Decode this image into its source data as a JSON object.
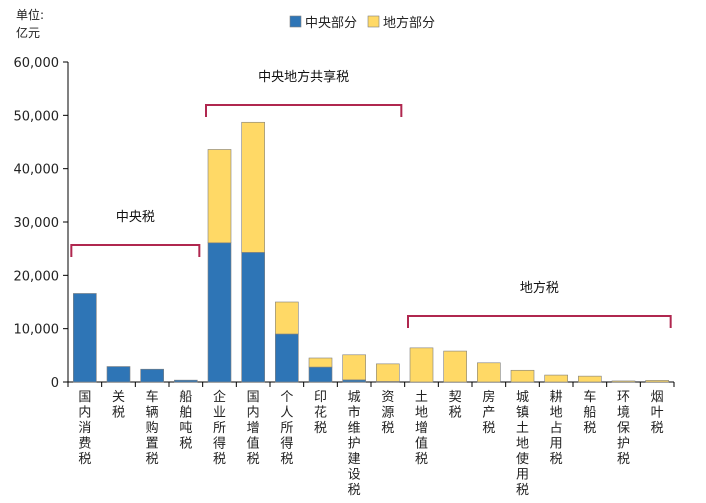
{
  "chart_data": {
    "type": "bar",
    "stacked": true,
    "unit_label": [
      "单位:",
      "亿元"
    ],
    "categories": [
      "国内消费税",
      "关税",
      "车辆购置税",
      "船舶吨税",
      "企业所得税",
      "国内增值税",
      "个人所得税",
      "印花税",
      "城市维护建设税",
      "资源税",
      "土地增值税",
      "契税",
      "房产税",
      "城镇土地使用税",
      "耕地占用税",
      "车船税",
      "环境保护税",
      "烟叶税"
    ],
    "series": [
      {
        "name": "中央部分",
        "color": "#2e75b6",
        "values": [
          16600,
          2900,
          2400,
          350,
          26100,
          24300,
          9000,
          2800,
          400,
          100,
          0,
          0,
          0,
          0,
          0,
          0,
          0,
          0
        ]
      },
      {
        "name": "地方部分",
        "color": "#ffd966",
        "values": [
          0,
          0,
          0,
          0,
          17500,
          24400,
          6000,
          1700,
          4700,
          3300,
          6400,
          5800,
          3600,
          2200,
          1300,
          1100,
          200,
          300
        ]
      }
    ],
    "ylim": [
      0,
      60000
    ],
    "yticks": [
      "0",
      "10,000",
      "20,000",
      "30,000",
      "40,000",
      "50,000",
      "60,000"
    ],
    "legend_position": "top",
    "group_brackets": [
      {
        "label": "中央税",
        "from": "国内消费税",
        "to": "船舶吨税"
      },
      {
        "label": "中央地方共享税",
        "from": "企业所得税",
        "to": "资源税"
      },
      {
        "label": "地方税",
        "from": "土地增值税",
        "to": "烟叶税"
      }
    ],
    "bracket_color": "#b0274f"
  }
}
